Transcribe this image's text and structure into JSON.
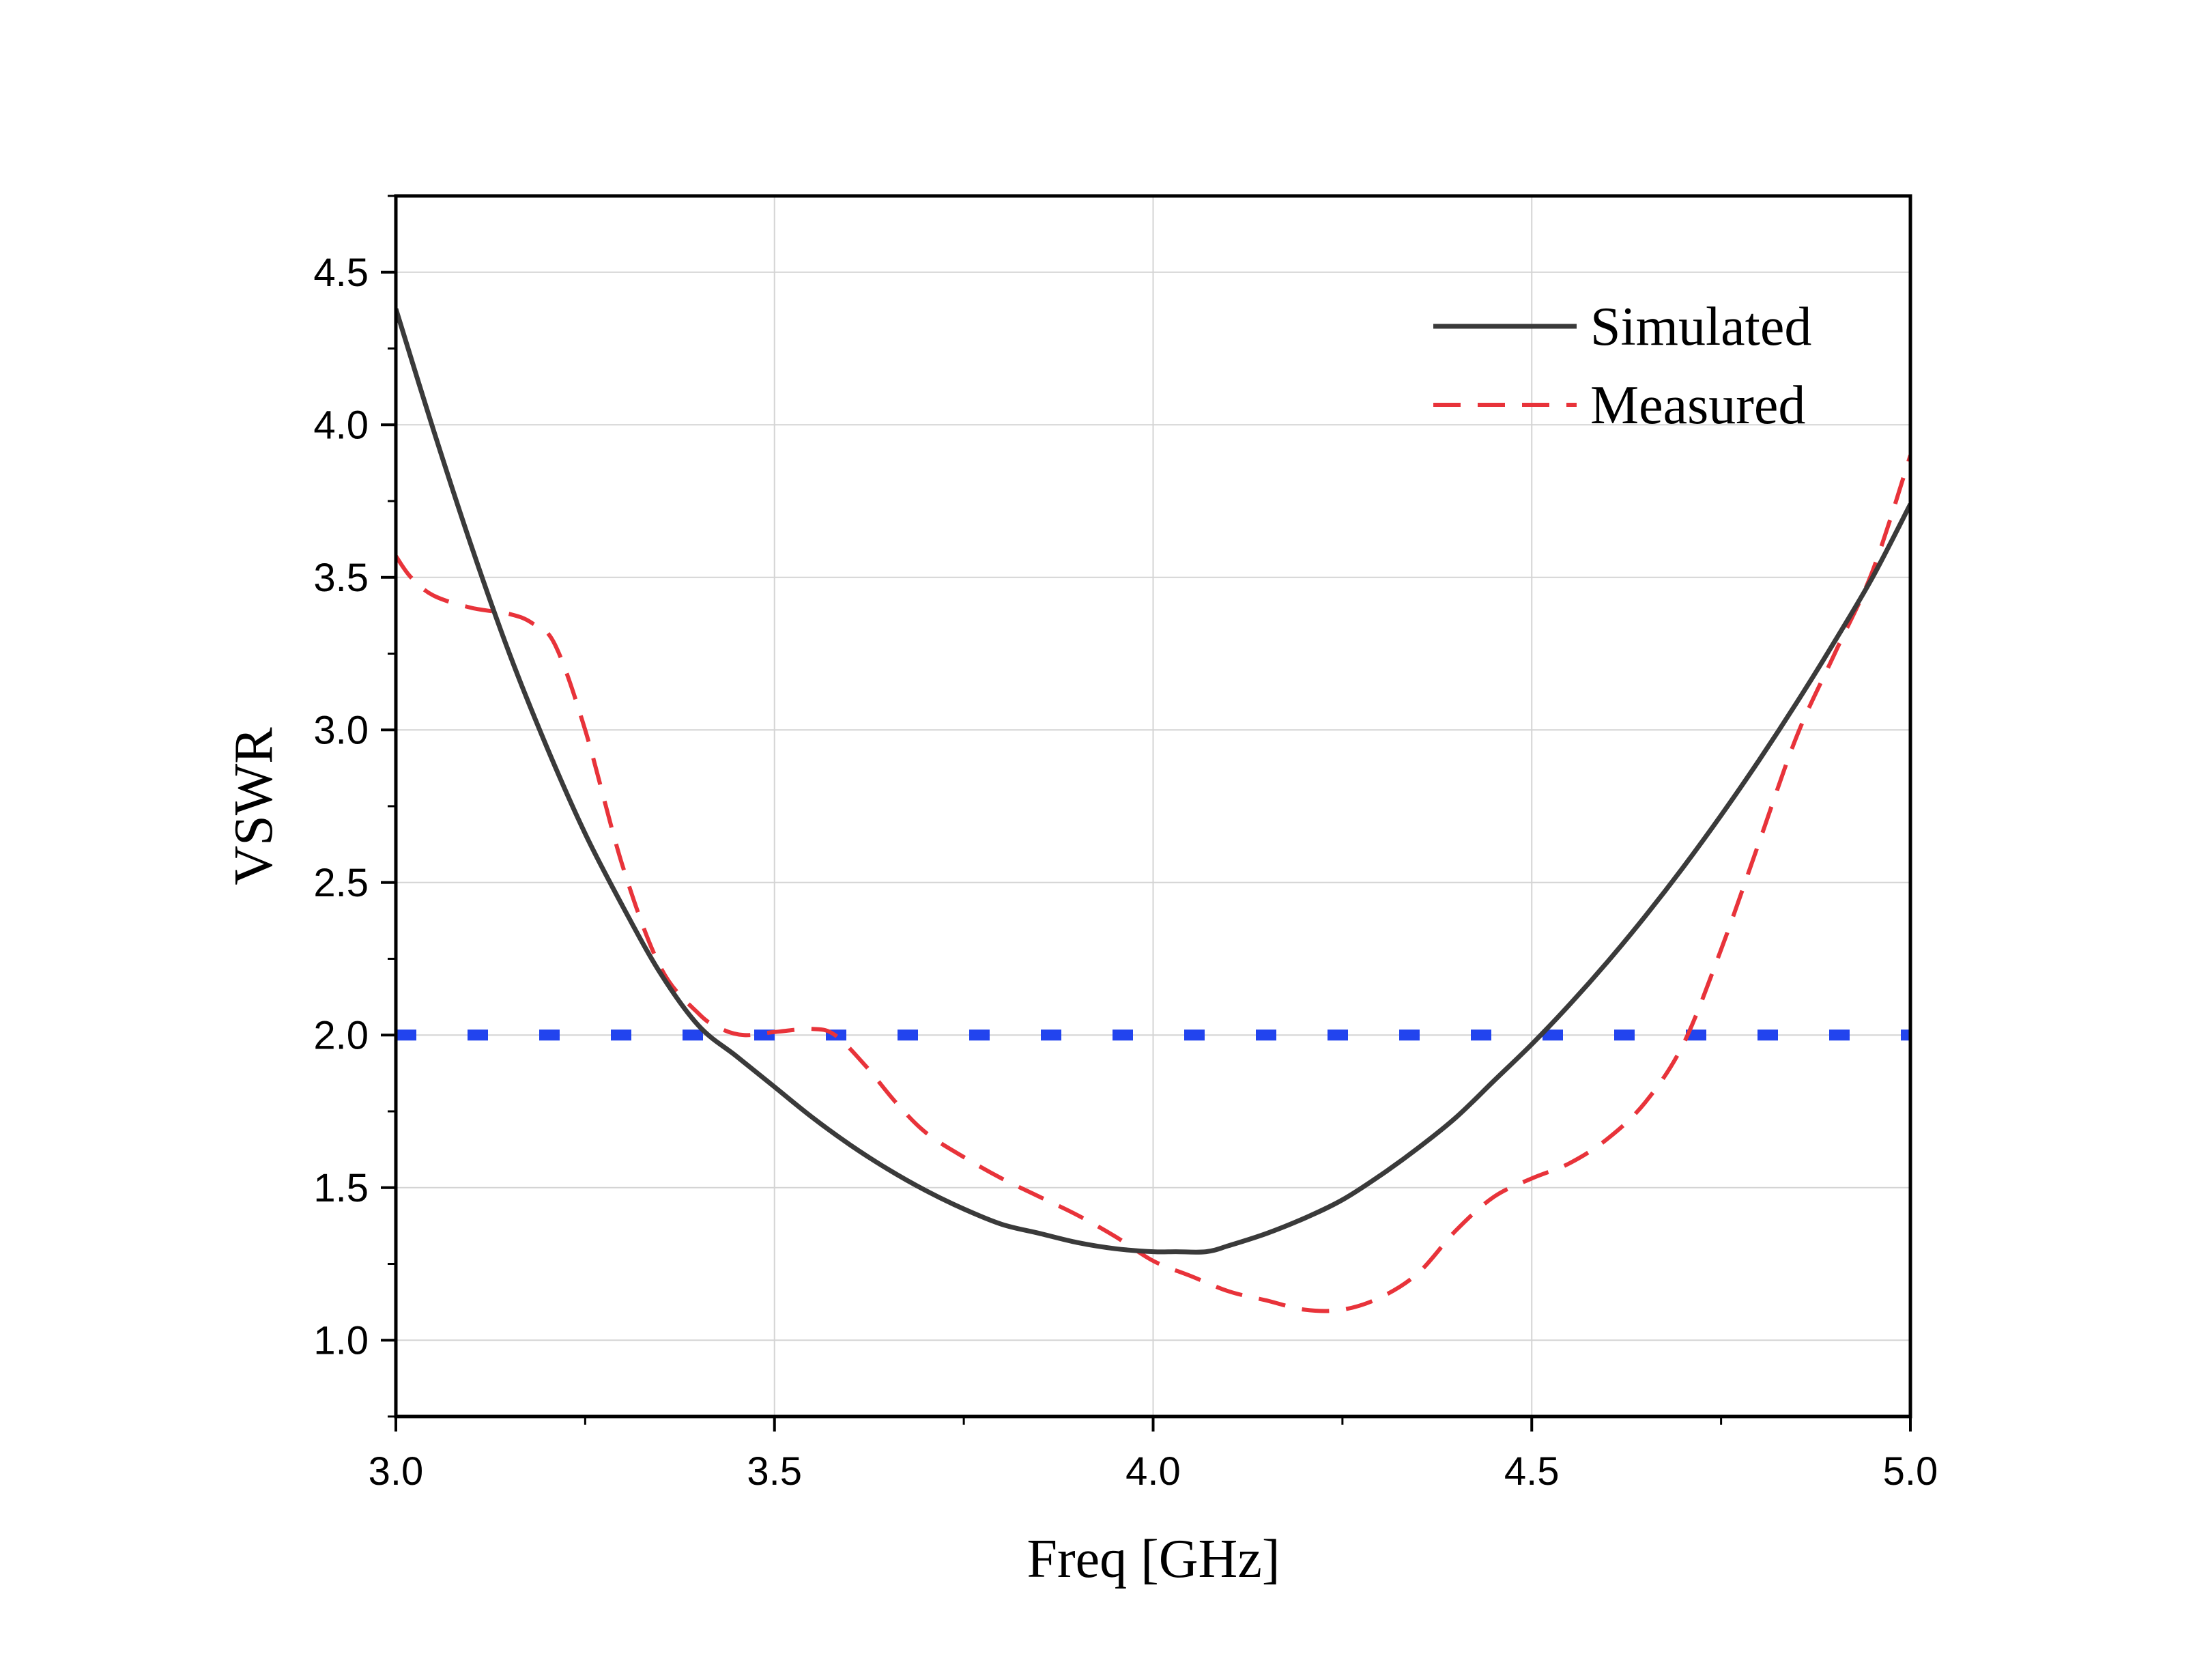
{
  "chart_data": {
    "type": "line",
    "title": "",
    "xlabel": "Freq [GHz]",
    "ylabel": "VSWR",
    "xlim": [
      3.0,
      5.0
    ],
    "ylim": [
      0.75,
      4.75
    ],
    "x_ticks": [
      "3.0",
      "3.5",
      "4.0",
      "4.5",
      "5.0"
    ],
    "x_tick_values": [
      3.0,
      3.5,
      4.0,
      4.5,
      5.0
    ],
    "y_ticks": [
      "1.0",
      "1.5",
      "2.0",
      "2.5",
      "3.0",
      "3.5",
      "4.0",
      "4.5"
    ],
    "y_tick_values": [
      1.0,
      1.5,
      2.0,
      2.5,
      3.0,
      3.5,
      4.0,
      4.5
    ],
    "x_minor_step": 0.25,
    "y_minor_step": 0.25,
    "grid": true,
    "legend_position": "top-right",
    "reference_line": {
      "y": 2.0,
      "color": "#2244ee",
      "style": "dotted"
    },
    "series": [
      {
        "name": "Simulated",
        "color": "#3a3a3a",
        "style": "solid",
        "x": [
          3.0,
          3.05,
          3.1,
          3.15,
          3.2,
          3.25,
          3.3,
          3.35,
          3.4,
          3.45,
          3.5,
          3.55,
          3.6,
          3.65,
          3.7,
          3.75,
          3.8,
          3.85,
          3.9,
          3.95,
          4.0,
          4.03,
          4.07,
          4.1,
          4.15,
          4.2,
          4.25,
          4.3,
          4.35,
          4.4,
          4.45,
          4.5,
          4.55,
          4.6,
          4.65,
          4.7,
          4.75,
          4.8,
          4.85,
          4.9,
          4.95,
          5.0
        ],
        "y": [
          4.38,
          3.98,
          3.6,
          3.25,
          2.94,
          2.66,
          2.42,
          2.2,
          2.03,
          1.93,
          1.83,
          1.73,
          1.64,
          1.56,
          1.49,
          1.43,
          1.38,
          1.35,
          1.32,
          1.3,
          1.29,
          1.29,
          1.29,
          1.31,
          1.35,
          1.4,
          1.46,
          1.54,
          1.63,
          1.73,
          1.85,
          1.97,
          2.1,
          2.24,
          2.39,
          2.55,
          2.72,
          2.9,
          3.09,
          3.29,
          3.5,
          3.74
        ]
      },
      {
        "name": "Measured",
        "color": "#e8333a",
        "style": "dashed",
        "x": [
          3.0,
          3.02,
          3.05,
          3.1,
          3.15,
          3.18,
          3.21,
          3.25,
          3.3,
          3.35,
          3.4,
          3.43,
          3.46,
          3.5,
          3.55,
          3.58,
          3.62,
          3.66,
          3.7,
          3.75,
          3.8,
          3.85,
          3.9,
          3.95,
          4.0,
          4.05,
          4.1,
          4.15,
          4.2,
          4.25,
          4.3,
          4.35,
          4.4,
          4.45,
          4.5,
          4.55,
          4.6,
          4.65,
          4.7,
          4.75,
          4.8,
          4.85,
          4.9,
          4.95,
          5.0
        ],
        "y": [
          3.57,
          3.5,
          3.44,
          3.4,
          3.38,
          3.35,
          3.28,
          3.0,
          2.55,
          2.22,
          2.07,
          2.02,
          2.0,
          2.01,
          2.02,
          2.0,
          1.9,
          1.78,
          1.68,
          1.6,
          1.53,
          1.47,
          1.41,
          1.34,
          1.26,
          1.21,
          1.16,
          1.13,
          1.1,
          1.1,
          1.14,
          1.22,
          1.36,
          1.47,
          1.53,
          1.58,
          1.66,
          1.78,
          1.97,
          2.28,
          2.63,
          2.98,
          3.25,
          3.52,
          3.9
        ]
      }
    ]
  }
}
